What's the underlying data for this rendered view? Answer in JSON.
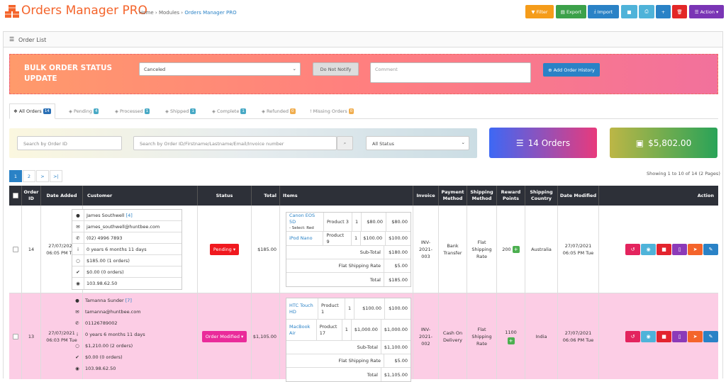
{
  "header": {
    "title": "Orders Manager PRO",
    "breadcrumb": {
      "home": "Home",
      "sep1": "›",
      "modules": "Modules",
      "sep2": "›",
      "current": "Orders Manager PRO"
    },
    "toolbar": {
      "filter": "Filter",
      "export": "Export",
      "import": "Import",
      "action": "Action"
    }
  },
  "panel": {
    "title": "Order List"
  },
  "bulk": {
    "title": "BULK ORDER STATUS UPDATE",
    "status_value": "Canceled",
    "notify_label": "Do Not Notify",
    "comment_placeholder": "Comment",
    "add_history_label": "Add Order History"
  },
  "tabs": [
    {
      "label": "All Orders",
      "count": "14"
    },
    {
      "label": "Pending",
      "count": "4"
    },
    {
      "label": "Processed",
      "count": "1"
    },
    {
      "label": "Shipped",
      "count": "1"
    },
    {
      "label": "Complete",
      "count": "1"
    },
    {
      "label": "Refunded",
      "count": "0"
    },
    {
      "label": "Missing Orders",
      "count": "0"
    }
  ],
  "filters": {
    "order_id_placeholder": "Search by Order ID",
    "search_placeholder": "Search by Order ID/Firstname/Lastname/Email/Invoice number",
    "status_value": "All Status"
  },
  "stats": {
    "orders": "14 Orders",
    "total": "$5,802.00"
  },
  "pagination": {
    "pages": [
      "1",
      "2",
      ">",
      ">|"
    ],
    "showing": "Showing 1 to 10 of 14 (2 Pages)"
  },
  "columns": [
    "Order ID",
    "Date Added",
    "Customer",
    "Status",
    "Total",
    "Items",
    "Invoice",
    "Payment Method",
    "Shipping Method",
    "Reward Points",
    "Shipping Country",
    "Date Modified",
    "Action"
  ],
  "orders": [
    {
      "id": "14",
      "date_added": [
        "27/07/2021",
        "06:05 PM Tue"
      ],
      "customer": {
        "name": "James Southwell",
        "group": "[4]",
        "email": "james_southwell@huntbee.com",
        "phone": "(02) 4996 7893",
        "age": "0 years 6 months 11 days",
        "spent": "$185.00 (1 orders)",
        "reward": "$0.00 (0 orders)",
        "ip": "103.98.62.50"
      },
      "status": "Pending",
      "status_color": "#f0191f",
      "total": "$185.00",
      "items": [
        {
          "name": "Canon EOS 5D",
          "option": "- Select: Red",
          "model": "Product 3",
          "qty": "1",
          "price": "$80.00",
          "total": "$80.00"
        },
        {
          "name": "iPod Nano",
          "option": "",
          "model": "Product 9",
          "qty": "1",
          "price": "$100.00",
          "total": "$100.00"
        }
      ],
      "totals": [
        {
          "label": "Sub-Total",
          "value": "$180.00"
        },
        {
          "label": "Flat Shipping Rate",
          "value": "$5.00"
        },
        {
          "label": "Total",
          "value": "$185.00"
        }
      ],
      "invoice": [
        "INV-",
        "2021-",
        "003"
      ],
      "payment": [
        "Bank",
        "Transfer"
      ],
      "shipping": [
        "Flat",
        "Shipping",
        "Rate"
      ],
      "reward_points": "200",
      "country": "Australia",
      "date_modified": [
        "27/07/2021",
        "06:05 PM Tue"
      ]
    },
    {
      "id": "13",
      "date_added": [
        "27/07/2021",
        "06:03 PM Tue"
      ],
      "customer": {
        "name": "Tamanna Sunder",
        "group": "[7]",
        "email": "tamanna@huntbee.com",
        "phone": "01126789002",
        "age": "0 years 6 months 11 days",
        "spent": "$1,210.00 (2 orders)",
        "reward": "$0.00 (0 orders)",
        "ip": "103.98.62.50"
      },
      "status": "Order Modified",
      "status_color": "#ea2b9a",
      "total": "$1,105.00",
      "items": [
        {
          "name": "HTC Touch HD",
          "option": "",
          "model": "Product 1",
          "qty": "1",
          "price": "$100.00",
          "total": "$100.00"
        },
        {
          "name": "MacBook Air",
          "option": "",
          "model": "Product 17",
          "qty": "1",
          "price": "$1,000.00",
          "total": "$1,000.00"
        }
      ],
      "totals": [
        {
          "label": "Sub-Total",
          "value": "$1,100.00"
        },
        {
          "label": "Flat Shipping Rate",
          "value": "$5.00"
        },
        {
          "label": "Total",
          "value": "$1,105.00"
        }
      ],
      "invoice": [
        "INV-",
        "2021-",
        "002"
      ],
      "payment": [
        "Cash On",
        "Delivery"
      ],
      "shipping": [
        "Flat",
        "Shipping",
        "Rate"
      ],
      "reward_points": "1100",
      "country": "India",
      "date_modified": [
        "27/07/2021",
        "06:06 PM Tue"
      ]
    }
  ]
}
